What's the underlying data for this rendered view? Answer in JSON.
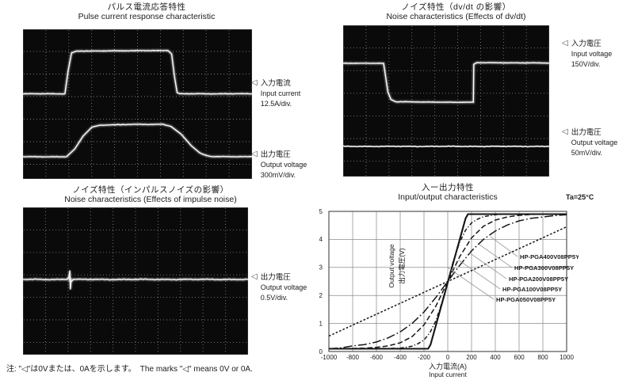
{
  "colors": {
    "ink": "#1c1c1c",
    "scope_bg": "#0a0a0a",
    "trace": "#ffffff",
    "scope_grid": "#909090",
    "chart_grid": "#8c8c8c",
    "chart_line": "#151515",
    "leader": "#9a9a9a"
  },
  "marks": {
    "glyph": "◁"
  },
  "note": {
    "text": "注: \"◁\"は0Vまたは、0Aを示します。　The marks \"◁\" means 0V or 0A."
  },
  "panels": {
    "pulse": {
      "title_jp": "パルス電流応答特性",
      "title_en": "Pulse current response characteristic",
      "channels": [
        {
          "jp": "入力電流",
          "en": "Input current",
          "scale": "12.5A/div."
        },
        {
          "jp": "出力電圧",
          "en": "Output voltage",
          "scale": "300mV/div."
        }
      ]
    },
    "dvdt": {
      "title_jp": "ノイズ特性（dv/dt の影響）",
      "title_en": "Noise characteristics (Effects of dv/dt)",
      "channels": [
        {
          "jp": "入力電圧",
          "en": "Input voltage",
          "scale": "150V/div."
        },
        {
          "jp": "出力電圧",
          "en": "Output voltage",
          "scale": "50mV/div."
        }
      ]
    },
    "impulse": {
      "title_jp": "ノイズ特性（インパルスノイズの影響）",
      "title_en": "Noise characteristics (Effects of impulse noise)",
      "channels": [
        {
          "jp": "出力電圧",
          "en": "Output voltage",
          "scale": "0.5V/div."
        }
      ]
    },
    "io": {
      "title_jp": "入ー出力特性",
      "title_en": "Input/output characteristics",
      "condition": "Ta=25°C",
      "xlabel_jp": "入力電流(A)",
      "xlabel_en": "Input current",
      "ylabel_en": "Output voltage",
      "ylabel_jp": "出力電圧(V)"
    }
  },
  "chart_data": [
    {
      "type": "line",
      "title": "入ー出力特性 / Input/output characteristics",
      "condition": "Ta=25°C",
      "xlabel": "入力電流(A) / Input current",
      "ylabel": "Output voltage / 出力電圧(V)",
      "xlim": [
        -1000,
        1000
      ],
      "ylim": [
        0,
        5
      ],
      "xticks": [
        -1000,
        -800,
        -600,
        -400,
        -200,
        0,
        200,
        400,
        600,
        800,
        1000
      ],
      "yticks": [
        0,
        1,
        2,
        3,
        4,
        5
      ],
      "grid": true,
      "legend_position": "inline-labels",
      "series": [
        {
          "name": "HP-PGA400V08PP5Y",
          "style": "shortdash",
          "points": [
            [
              -1000,
              0.55
            ],
            [
              0,
              2.5
            ],
            [
              1000,
              4.45
            ]
          ]
        },
        {
          "name": "HP-PGA300V08PP5Y",
          "style": "longdashdot",
          "points": [
            [
              -1000,
              0.1
            ],
            [
              -900,
              0.13
            ],
            [
              -800,
              0.2
            ],
            [
              -700,
              0.25
            ],
            [
              -600,
              0.34
            ],
            [
              -500,
              0.49
            ],
            [
              -400,
              0.7
            ],
            [
              -300,
              1.0
            ],
            [
              -200,
              1.41
            ],
            [
              -100,
              1.93
            ],
            [
              0,
              2.5
            ],
            [
              100,
              3.07
            ],
            [
              200,
              3.59
            ],
            [
              300,
              4.0
            ],
            [
              400,
              4.3
            ],
            [
              500,
              4.51
            ],
            [
              600,
              4.66
            ],
            [
              700,
              4.75
            ],
            [
              800,
              4.8
            ],
            [
              900,
              4.85
            ],
            [
              1000,
              4.88
            ]
          ]
        },
        {
          "name": "HP-PGA200V08PP5Y",
          "style": "dashed",
          "points": [
            [
              -1000,
              0.1
            ],
            [
              -800,
              0.11
            ],
            [
              -700,
              0.12
            ],
            [
              -600,
              0.15
            ],
            [
              -500,
              0.2
            ],
            [
              -400,
              0.31
            ],
            [
              -300,
              0.53
            ],
            [
              -200,
              0.95
            ],
            [
              -100,
              1.62
            ],
            [
              0,
              2.5
            ],
            [
              100,
              3.38
            ],
            [
              200,
              4.05
            ],
            [
              300,
              4.47
            ],
            [
              400,
              4.69
            ],
            [
              500,
              4.8
            ],
            [
              600,
              4.86
            ],
            [
              700,
              4.89
            ],
            [
              800,
              4.9
            ],
            [
              1000,
              4.9
            ]
          ]
        },
        {
          "name": "HP-PGA100V08PP5Y",
          "style": "dashdot",
          "points": [
            [
              -1000,
              0.1
            ],
            [
              -500,
              0.11
            ],
            [
              -400,
              0.12
            ],
            [
              -300,
              0.19
            ],
            [
              -250,
              0.28
            ],
            [
              -200,
              0.41
            ],
            [
              -150,
              0.67
            ],
            [
              -100,
              1.1
            ],
            [
              -50,
              1.73
            ],
            [
              0,
              2.5
            ],
            [
              50,
              3.27
            ],
            [
              100,
              3.9
            ],
            [
              150,
              4.33
            ],
            [
              200,
              4.59
            ],
            [
              250,
              4.72
            ],
            [
              300,
              4.81
            ],
            [
              400,
              4.88
            ],
            [
              500,
              4.9
            ],
            [
              1000,
              4.9
            ]
          ]
        },
        {
          "name": "HP-PGA050V08PP5Y",
          "style": "solid",
          "points": [
            [
              -1000,
              0.1
            ],
            [
              -165,
              0.1
            ],
            [
              -145,
              0.25
            ],
            [
              0,
              2.46
            ],
            [
              150,
              4.75
            ],
            [
              170,
              4.9
            ],
            [
              1000,
              4.9
            ]
          ]
        }
      ]
    },
    {
      "type": "oscilloscope",
      "panel": "pulse",
      "title": "Pulse current response characteristic",
      "traces": [
        {
          "label": "Input current 12.5A/div.",
          "noise": 0.35,
          "points": [
            [
              0,
              0.431
            ],
            [
              0.183,
              0.431
            ],
            [
              0.197,
              0.28
            ],
            [
              0.212,
              0.158
            ],
            [
              0.235,
              0.146
            ],
            [
              0.44,
              0.1435
            ],
            [
              0.633,
              0.142
            ],
            [
              0.649,
              0.165
            ],
            [
              0.661,
              0.31
            ],
            [
              0.673,
              0.423
            ],
            [
              0.684,
              0.431
            ],
            [
              1,
              0.431
            ]
          ]
        },
        {
          "label": "Output voltage 300mV/div.",
          "noise": 0.4,
          "points": [
            [
              0,
              0.852
            ],
            [
              0.19,
              0.852
            ],
            [
              0.226,
              0.8
            ],
            [
              0.262,
              0.715
            ],
            [
              0.3,
              0.655
            ],
            [
              0.336,
              0.641
            ],
            [
              0.46,
              0.636
            ],
            [
              0.61,
              0.635
            ],
            [
              0.646,
              0.649
            ],
            [
              0.69,
              0.7
            ],
            [
              0.736,
              0.78
            ],
            [
              0.771,
              0.826
            ],
            [
              0.801,
              0.845
            ],
            [
              0.832,
              0.851
            ],
            [
              1,
              0.851
            ]
          ]
        }
      ]
    },
    {
      "type": "oscilloscope",
      "panel": "dvdt",
      "title": "Noise characteristics (Effects of dv/dt)",
      "traces": [
        {
          "label": "Input voltage 150V/div.",
          "noise": 0.3,
          "points": [
            [
              0,
              0.251
            ],
            [
              0.196,
              0.251
            ],
            [
              0.206,
              0.34
            ],
            [
              0.217,
              0.44
            ],
            [
              0.232,
              0.49
            ],
            [
              0.255,
              0.505
            ],
            [
              0.45,
              0.508
            ],
            [
              0.628,
              0.509
            ],
            [
              0.632,
              0.509
            ],
            [
              0.634,
              0.258
            ],
            [
              0.647,
              0.247
            ],
            [
              1,
              0.249
            ]
          ]
        },
        {
          "label": "Output voltage 50mV/div.",
          "noise": 0.8,
          "points": [
            [
              0,
              0.801
            ],
            [
              1,
              0.801
            ]
          ]
        }
      ]
    },
    {
      "type": "oscilloscope",
      "panel": "impulse",
      "title": "Noise characteristics (Effects of impulse noise)",
      "traces": [
        {
          "label": "Output voltage 0.5V/div.",
          "noise": 0.7,
          "points": [
            [
              0,
              0.489
            ],
            [
              0.195,
              0.489
            ],
            [
              0.2045,
              0.47
            ],
            [
              0.208,
              0.43
            ],
            [
              0.2105,
              0.555
            ],
            [
              0.2135,
              0.505
            ],
            [
              0.225,
              0.489
            ],
            [
              1,
              0.489
            ]
          ],
          "spike": {
            "x": 0.2095,
            "streak": [
              0.1,
              0.7
            ],
            "core": [
              0.39,
              0.61
            ]
          }
        }
      ]
    }
  ]
}
